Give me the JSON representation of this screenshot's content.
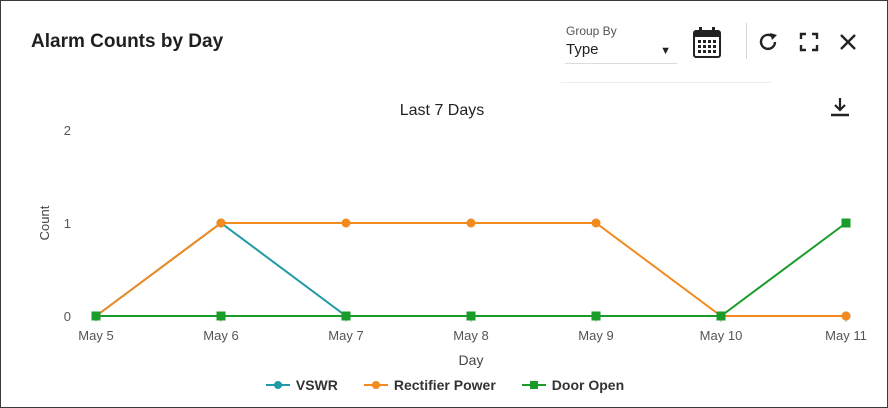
{
  "header": {
    "title": "Alarm Counts by Day",
    "group_by_label": "Group By",
    "group_by_value": "Type"
  },
  "icons": {
    "calendar": "calendar-icon",
    "refresh": "refresh-icon",
    "fullscreen": "fullscreen-icon",
    "close": "close-icon",
    "download": "download-icon",
    "dropdown": "chevron-down-icon"
  },
  "chart_data": {
    "type": "line",
    "title": "Last 7 Days",
    "xlabel": "Day",
    "ylabel": "Count",
    "categories": [
      "May 5",
      "May 6",
      "May 7",
      "May 8",
      "May 9",
      "May 10",
      "May 11"
    ],
    "ylim": [
      0,
      2
    ],
    "yticks": [
      0,
      1,
      2
    ],
    "grid": false,
    "legend_position": "bottom",
    "series": [
      {
        "name": "VSWR",
        "values": [
          0,
          1,
          0,
          0,
          0,
          0,
          0
        ],
        "color": "#1f9aa6",
        "marker": "circle"
      },
      {
        "name": "Rectifier Power",
        "values": [
          0,
          1,
          1,
          1,
          1,
          0,
          0
        ],
        "color": "#f28a1e",
        "marker": "circle"
      },
      {
        "name": "Door Open",
        "values": [
          0,
          0,
          0,
          0,
          0,
          0,
          1
        ],
        "color": "#1a9c2a",
        "marker": "square"
      }
    ]
  }
}
